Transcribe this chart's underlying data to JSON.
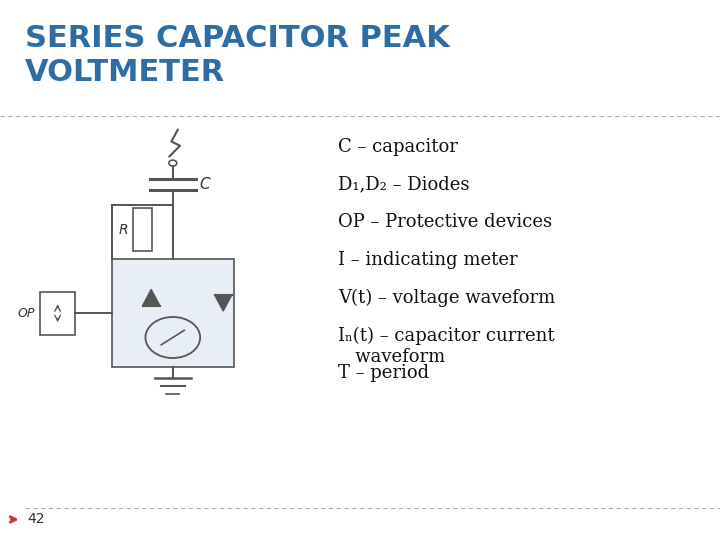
{
  "title": "SERIES CAPACITOR PEAK\nVOLTMETER",
  "title_color": "#2E6DA4",
  "title_fontsize": 22,
  "bg_color": "#FFFFFF",
  "legend_lines": [
    "C – capacitor",
    "D₁,D₂ – Diodes",
    "OP – Protective devices",
    "I – indicating meter",
    "V(t) – voltage waveform",
    "Iₙ(t) – capacitor current\n   waveform",
    "T – period"
  ],
  "legend_fontsize": 13,
  "slide_number": "42",
  "divider_color": "#AAAAAA",
  "circuit_color": "#555555",
  "label_color": "#333333"
}
